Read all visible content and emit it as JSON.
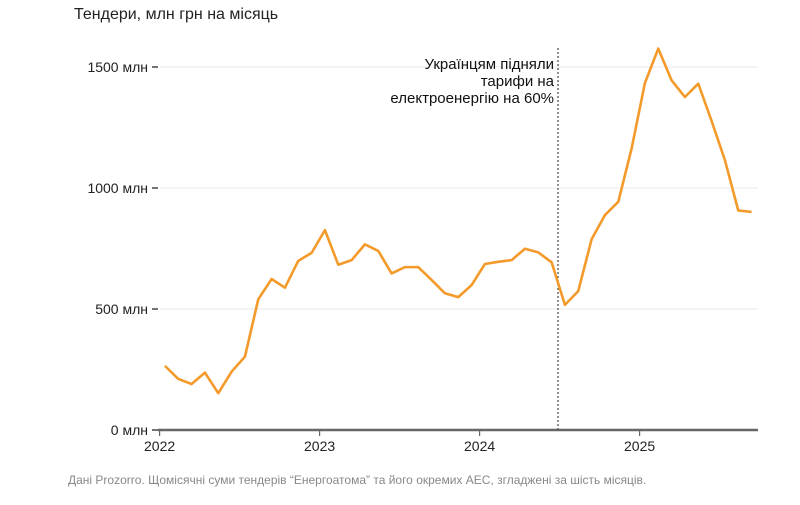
{
  "chart_data": {
    "type": "line",
    "title": "Тендери, млн грн на місяць",
    "xlabel": "",
    "ylabel": "",
    "ylim": [
      0,
      1600
    ],
    "xlim": [
      2021.94,
      2025.74
    ],
    "y_ticks": [
      0,
      500,
      1000,
      1500
    ],
    "y_tick_labels": [
      "0 млн",
      "500 млн",
      "1000 млн",
      "1500 млн"
    ],
    "x_ticks": [
      2022,
      2023,
      2024,
      2025
    ],
    "x_tick_labels": [
      "2022",
      "2023",
      "2024",
      "2025"
    ],
    "grid": true,
    "color": "#f39a2b",
    "series": [
      {
        "name": "Тендери",
        "start": "2022-01",
        "values": [
          265,
          211,
          190,
          237,
          152,
          241,
          303,
          540,
          624,
          588,
          699,
          732,
          826,
          683,
          702,
          767,
          740,
          647,
          673,
          673,
          620,
          565,
          549,
          599,
          686,
          695,
          702,
          749,
          734,
          693,
          517,
          574,
          788,
          888,
          943,
          1163,
          1434,
          1576,
          1445,
          1376,
          1431,
          1277,
          1115,
          907,
          901
        ]
      }
    ],
    "annotation": {
      "x": 2024.49,
      "lines": [
        "Українцям підняли",
        "тарифи на",
        "електроенергію на 60%"
      ]
    },
    "source_note": "Дані Prozorro. Щомісячні суми тендерів “Енергоатома” та його окремих АЕС, згладжені за шість місяців."
  }
}
